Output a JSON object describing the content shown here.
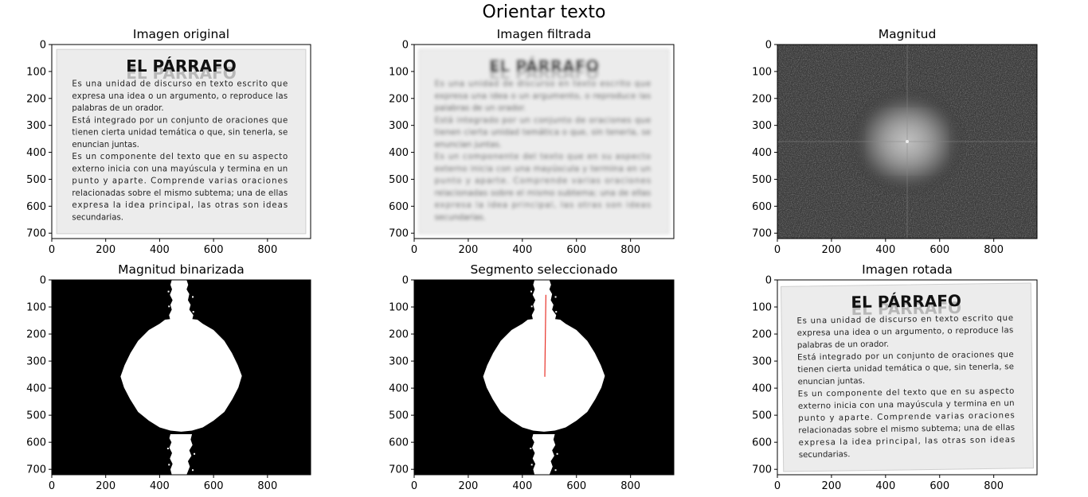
{
  "figure": {
    "suptitle": "Orientar texto"
  },
  "document": {
    "heading": "EL PÁRRAFO",
    "lines": [
      "Es una unidad de discurso en texto escrito que",
      "expresa una idea o un argumento, o reproduce las",
      "palabras de un orador.",
      "Está integrado por un conjunto de oraciones que",
      "tienen cierta unidad temática o que, sin tenerla, se",
      "enuncian juntas.",
      "Es un componente del texto que en su aspecto",
      "externo inicia con una mayúscula y termina en un",
      "punto y aparte. Comprende varias oraciones",
      "relacionadas sobre el mismo subtema; una de ellas",
      "expresa la idea principal, las otras son ideas",
      "secundarias."
    ]
  },
  "chart_data": [
    {
      "type": "image",
      "title": "Imagen original",
      "content": "document",
      "xlim": [
        0,
        960
      ],
      "ylim": [
        720,
        0
      ],
      "xticks": [
        0,
        200,
        400,
        600,
        800
      ],
      "yticks": [
        0,
        100,
        200,
        300,
        400,
        500,
        600,
        700
      ]
    },
    {
      "type": "image",
      "title": "Imagen filtrada",
      "content": "document-blurred",
      "xlim": [
        0,
        960
      ],
      "ylim": [
        720,
        0
      ],
      "xticks": [
        0,
        200,
        400,
        600,
        800
      ],
      "yticks": [
        0,
        100,
        200,
        300,
        400,
        500,
        600,
        700
      ]
    },
    {
      "type": "heatmap",
      "title": "Magnitud",
      "content": "fft-magnitude",
      "center": [
        480,
        360
      ],
      "xlim": [
        0,
        960
      ],
      "ylim": [
        720,
        0
      ],
      "xticks": [
        0,
        200,
        400,
        600,
        800
      ],
      "yticks": [
        0,
        100,
        200,
        300,
        400,
        500,
        600,
        700
      ]
    },
    {
      "type": "image",
      "title": "Magnitud binarizada",
      "content": "binary-magnitude",
      "xlim": [
        0,
        960
      ],
      "ylim": [
        720,
        0
      ],
      "xticks": [
        0,
        200,
        400,
        600,
        800
      ],
      "yticks": [
        0,
        100,
        200,
        300,
        400,
        500,
        600,
        700
      ]
    },
    {
      "type": "image",
      "title": "Segmento seleccionado",
      "content": "binary-magnitude-segment",
      "segment": {
        "x": [
          483,
          487
        ],
        "y": [
          358,
          55
        ],
        "color": "#e8332a"
      },
      "xlim": [
        0,
        960
      ],
      "ylim": [
        720,
        0
      ],
      "xticks": [
        0,
        200,
        400,
        600,
        800
      ],
      "yticks": [
        0,
        100,
        200,
        300,
        400,
        500,
        600,
        700
      ]
    },
    {
      "type": "image",
      "title": "Imagen rotada",
      "content": "document-rotated",
      "rotation_deg": -0.8,
      "xlim": [
        0,
        960
      ],
      "ylim": [
        720,
        0
      ],
      "xticks": [
        0,
        200,
        400,
        600,
        800
      ],
      "yticks": [
        0,
        100,
        200,
        300,
        400,
        500,
        600,
        700
      ]
    }
  ]
}
